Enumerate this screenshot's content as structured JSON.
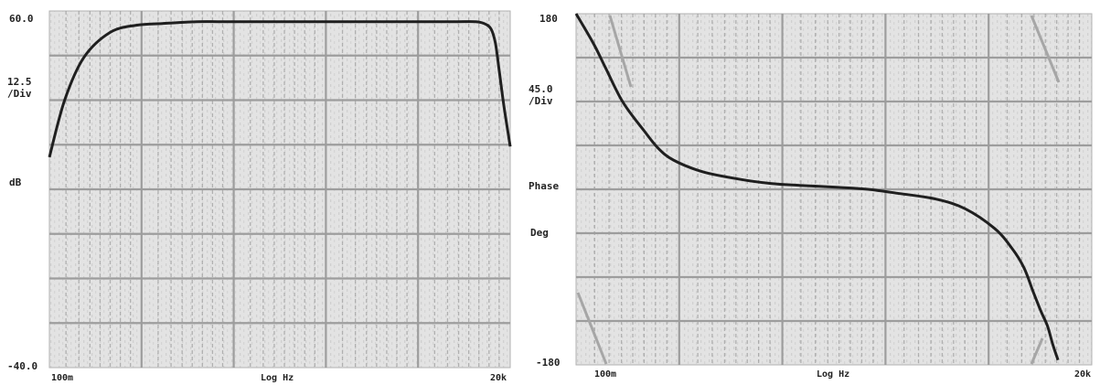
{
  "chart_data": [
    {
      "type": "line",
      "x_scale": "log",
      "x_range": [
        "100m",
        "20k"
      ],
      "xlabel": "Log Hz",
      "x_tick_labels": [
        "100m",
        "20k"
      ],
      "y_range": [
        -40.0,
        60.0
      ],
      "y_top_label": "60.0",
      "y_bottom_label": "-40.0",
      "y_div_value": "12.5",
      "y_div_unit": "/Div",
      "ylabel": "dB",
      "grid": true,
      "series": [
        {
          "x": [
            0.1,
            0.15,
            0.25,
            0.5,
            1,
            2,
            5,
            10,
            50,
            100,
            500,
            1000,
            2000,
            5000,
            8000,
            10000,
            12000,
            13500,
            15000,
            17000,
            20000
          ],
          "y": [
            19,
            35,
            47,
            54,
            56,
            56.5,
            57,
            57,
            57,
            57,
            57,
            57,
            57,
            57,
            57,
            56.5,
            55,
            51,
            43,
            33,
            22
          ]
        }
      ]
    },
    {
      "type": "line",
      "x_scale": "log",
      "x_range": [
        "100m",
        "20k"
      ],
      "xlabel": "Log Hz",
      "x_tick_labels": [
        "100m",
        "20k"
      ],
      "y_range": [
        -180,
        180
      ],
      "y_top_label": "180",
      "y_bottom_label": "-180",
      "y_div_value": "45.0",
      "y_div_unit": "/Div",
      "ylabel_lines": [
        "Phase",
        "Deg"
      ],
      "grid": true,
      "series": [
        {
          "x": [
            0.1,
            0.15,
            0.2,
            0.3,
            0.5,
            0.7,
            1,
            2,
            5,
            10,
            20,
            50,
            100,
            200,
            500,
            1000,
            2000,
            3000,
            4000,
            5000,
            6000,
            7000,
            8000,
            9000
          ],
          "y": [
            180,
            150,
            125,
            90,
            60,
            42,
            30,
            18,
            10,
            6,
            4,
            2,
            0,
            -4,
            -10,
            -20,
            -40,
            -60,
            -80,
            -105,
            -125,
            -140,
            -160,
            -175
          ]
        }
      ]
    }
  ]
}
